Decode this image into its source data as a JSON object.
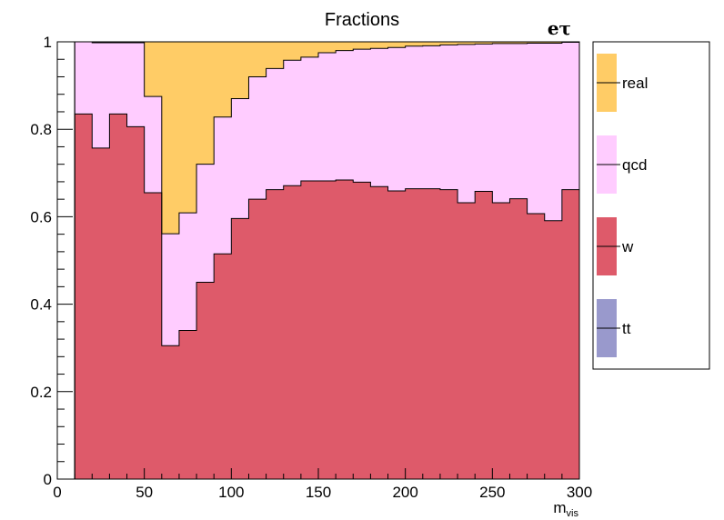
{
  "chart_data": {
    "type": "area",
    "title": "Fractions",
    "annotation": "eτ",
    "xlabel_main": "m",
    "xlabel_sub": "vis",
    "ylabel": "",
    "xlim": [
      0,
      300
    ],
    "ylim": [
      0,
      1
    ],
    "x_ticks": [
      "0",
      "50",
      "100",
      "150",
      "200",
      "250",
      "300"
    ],
    "y_ticks": [
      "0",
      "0.2",
      "0.4",
      "0.6",
      "0.8",
      "1"
    ],
    "bin_edges": [
      10,
      20,
      30,
      40,
      50,
      60,
      70,
      80,
      90,
      100,
      110,
      120,
      130,
      140,
      150,
      160,
      170,
      180,
      190,
      200,
      210,
      220,
      230,
      240,
      250,
      260,
      270,
      280,
      290,
      300
    ],
    "legend_position": "right",
    "grid": false,
    "series": [
      {
        "name": "tt",
        "color": "#9999cc",
        "values": [
          0,
          0,
          0,
          0,
          0,
          0,
          0,
          0,
          0,
          0,
          0,
          0,
          0,
          0,
          0,
          0,
          0,
          0,
          0,
          0,
          0,
          0,
          0,
          0,
          0,
          0,
          0,
          0,
          0
        ]
      },
      {
        "name": "w",
        "color": "#de5a6a",
        "values": [
          0.835,
          0.757,
          0.835,
          0.806,
          0.655,
          0.305,
          0.34,
          0.45,
          0.515,
          0.596,
          0.64,
          0.662,
          0.671,
          0.682,
          0.682,
          0.684,
          0.679,
          0.669,
          0.659,
          0.664,
          0.664,
          0.662,
          0.632,
          0.658,
          0.632,
          0.641,
          0.607,
          0.591,
          0.662
        ]
      },
      {
        "name": "qcd",
        "color": "#ffccff",
        "values": [
          0.165,
          0.241,
          0.163,
          0.192,
          0.22,
          0.256,
          0.269,
          0.27,
          0.313,
          0.274,
          0.28,
          0.277,
          0.287,
          0.283,
          0.293,
          0.296,
          0.304,
          0.316,
          0.328,
          0.326,
          0.327,
          0.331,
          0.362,
          0.337,
          0.364,
          0.355,
          0.39,
          0.406,
          0.337
        ]
      },
      {
        "name": "real",
        "color": "#ffcc66",
        "values": [
          0,
          0.002,
          0.002,
          0.002,
          0.125,
          0.439,
          0.391,
          0.28,
          0.172,
          0.13,
          0.08,
          0.061,
          0.042,
          0.035,
          0.025,
          0.02,
          0.017,
          0.015,
          0.013,
          0.01,
          0.009,
          0.007,
          0.006,
          0.005,
          0.004,
          0.004,
          0.003,
          0.003,
          0.001
        ]
      }
    ],
    "legend_order": [
      "real",
      "qcd",
      "w",
      "tt"
    ]
  }
}
